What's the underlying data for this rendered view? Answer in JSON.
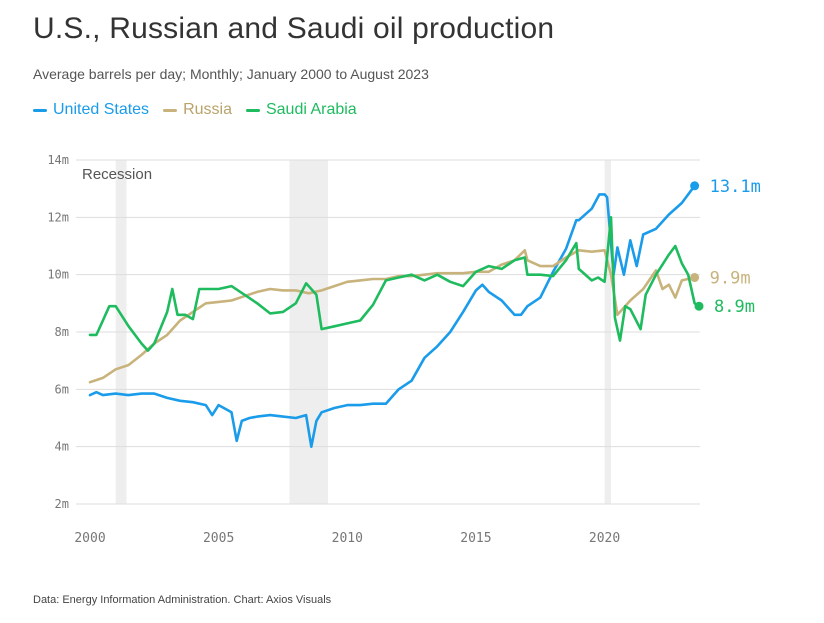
{
  "header": {
    "title": "U.S., Russian and Saudi oil production",
    "subtitle": "Average barrels per day; Monthly; January 2000 to August 2023"
  },
  "footer": {
    "source": "Data: Energy Information Administration. Chart: Axios Visuals"
  },
  "chart_data": {
    "type": "line",
    "title": "U.S., Russian and Saudi oil production",
    "subtitle": "Average barrels per day; Monthly; January 2000 to August 2023",
    "xlabel": "",
    "ylabel": "",
    "xlim": [
      2000,
      2023.67
    ],
    "ylim": [
      2,
      14
    ],
    "x_ticks": [
      2000,
      2005,
      2010,
      2015,
      2020
    ],
    "x_tick_labels": [
      "2000",
      "2005",
      "2010",
      "2015",
      "2020"
    ],
    "y_ticks": [
      2,
      4,
      6,
      8,
      10,
      12,
      14
    ],
    "y_tick_labels": [
      "2m",
      "4m",
      "6m",
      "8m",
      "10m",
      "12m",
      "14m"
    ],
    "grid": "horizontal",
    "legend": "top-left",
    "recession_label": "Recession",
    "recessions": [
      [
        2001.0,
        2001.42
      ],
      [
        2007.75,
        2009.25
      ],
      [
        2020.0,
        2020.25
      ]
    ],
    "series": [
      {
        "name": "United States",
        "color": "#1a9cea",
        "end_label": "13.1m",
        "points": [
          [
            2000.0,
            5.8
          ],
          [
            2000.25,
            5.9
          ],
          [
            2000.5,
            5.8
          ],
          [
            2001.0,
            5.85
          ],
          [
            2001.5,
            5.8
          ],
          [
            2002.0,
            5.85
          ],
          [
            2002.5,
            5.85
          ],
          [
            2003.0,
            5.7
          ],
          [
            2003.5,
            5.6
          ],
          [
            2004.0,
            5.55
          ],
          [
            2004.5,
            5.45
          ],
          [
            2004.75,
            5.1
          ],
          [
            2005.0,
            5.45
          ],
          [
            2005.5,
            5.2
          ],
          [
            2005.7,
            4.2
          ],
          [
            2005.9,
            4.9
          ],
          [
            2006.2,
            5.0
          ],
          [
            2006.5,
            5.05
          ],
          [
            2007.0,
            5.1
          ],
          [
            2007.5,
            5.05
          ],
          [
            2008.0,
            5.0
          ],
          [
            2008.4,
            5.1
          ],
          [
            2008.6,
            4.0
          ],
          [
            2008.8,
            4.9
          ],
          [
            2009.0,
            5.2
          ],
          [
            2009.5,
            5.35
          ],
          [
            2010.0,
            5.45
          ],
          [
            2010.5,
            5.45
          ],
          [
            2011.0,
            5.5
          ],
          [
            2011.5,
            5.5
          ],
          [
            2012.0,
            6.0
          ],
          [
            2012.5,
            6.3
          ],
          [
            2013.0,
            7.1
          ],
          [
            2013.5,
            7.5
          ],
          [
            2014.0,
            8.0
          ],
          [
            2014.5,
            8.7
          ],
          [
            2015.0,
            9.45
          ],
          [
            2015.25,
            9.65
          ],
          [
            2015.5,
            9.4
          ],
          [
            2016.0,
            9.1
          ],
          [
            2016.5,
            8.6
          ],
          [
            2016.75,
            8.6
          ],
          [
            2017.0,
            8.9
          ],
          [
            2017.5,
            9.2
          ],
          [
            2018.0,
            10.1
          ],
          [
            2018.5,
            10.9
          ],
          [
            2018.9,
            11.9
          ],
          [
            2019.0,
            11.9
          ],
          [
            2019.5,
            12.3
          ],
          [
            2019.8,
            12.8
          ],
          [
            2020.0,
            12.8
          ],
          [
            2020.1,
            12.7
          ],
          [
            2020.25,
            11.1
          ],
          [
            2020.35,
            10.0
          ],
          [
            2020.5,
            10.95
          ],
          [
            2020.75,
            10.0
          ],
          [
            2021.0,
            11.2
          ],
          [
            2021.25,
            10.3
          ],
          [
            2021.5,
            11.4
          ],
          [
            2022.0,
            11.6
          ],
          [
            2022.5,
            12.1
          ],
          [
            2023.0,
            12.5
          ],
          [
            2023.5,
            13.1
          ]
        ]
      },
      {
        "name": "Russia",
        "color": "#c8b37c",
        "end_label": "9.9m",
        "points": [
          [
            2000.0,
            6.25
          ],
          [
            2000.5,
            6.4
          ],
          [
            2001.0,
            6.7
          ],
          [
            2001.5,
            6.85
          ],
          [
            2002.0,
            7.2
          ],
          [
            2002.5,
            7.6
          ],
          [
            2003.0,
            7.9
          ],
          [
            2003.5,
            8.4
          ],
          [
            2004.0,
            8.7
          ],
          [
            2004.5,
            9.0
          ],
          [
            2005.0,
            9.05
          ],
          [
            2005.5,
            9.1
          ],
          [
            2006.0,
            9.25
          ],
          [
            2006.5,
            9.4
          ],
          [
            2007.0,
            9.5
          ],
          [
            2007.5,
            9.45
          ],
          [
            2008.0,
            9.45
          ],
          [
            2008.5,
            9.35
          ],
          [
            2009.0,
            9.45
          ],
          [
            2009.5,
            9.6
          ],
          [
            2010.0,
            9.75
          ],
          [
            2010.5,
            9.8
          ],
          [
            2011.0,
            9.85
          ],
          [
            2011.5,
            9.85
          ],
          [
            2012.0,
            9.95
          ],
          [
            2012.5,
            9.95
          ],
          [
            2013.0,
            10.0
          ],
          [
            2013.5,
            10.05
          ],
          [
            2014.0,
            10.05
          ],
          [
            2014.5,
            10.05
          ],
          [
            2015.0,
            10.1
          ],
          [
            2015.5,
            10.1
          ],
          [
            2016.0,
            10.35
          ],
          [
            2016.5,
            10.5
          ],
          [
            2016.9,
            10.85
          ],
          [
            2017.0,
            10.5
          ],
          [
            2017.5,
            10.3
          ],
          [
            2018.0,
            10.3
          ],
          [
            2018.5,
            10.6
          ],
          [
            2019.0,
            10.85
          ],
          [
            2019.5,
            10.8
          ],
          [
            2020.0,
            10.85
          ],
          [
            2020.25,
            10.0
          ],
          [
            2020.5,
            8.6
          ],
          [
            2020.75,
            8.85
          ],
          [
            2021.0,
            9.1
          ],
          [
            2021.5,
            9.5
          ],
          [
            2022.0,
            10.15
          ],
          [
            2022.25,
            9.5
          ],
          [
            2022.5,
            9.65
          ],
          [
            2022.75,
            9.2
          ],
          [
            2023.0,
            9.8
          ],
          [
            2023.5,
            9.9
          ]
        ]
      },
      {
        "name": "Saudi Arabia",
        "color": "#1fbb5f",
        "end_label": "8.9m",
        "points": [
          [
            2000.0,
            7.9
          ],
          [
            2000.25,
            7.9
          ],
          [
            2000.5,
            8.4
          ],
          [
            2000.75,
            8.9
          ],
          [
            2001.0,
            8.9
          ],
          [
            2001.5,
            8.2
          ],
          [
            2002.0,
            7.6
          ],
          [
            2002.25,
            7.35
          ],
          [
            2002.5,
            7.6
          ],
          [
            2003.0,
            8.7
          ],
          [
            2003.2,
            9.5
          ],
          [
            2003.4,
            8.6
          ],
          [
            2003.7,
            8.6
          ],
          [
            2004.0,
            8.45
          ],
          [
            2004.25,
            9.5
          ],
          [
            2005.0,
            9.5
          ],
          [
            2005.5,
            9.6
          ],
          [
            2006.0,
            9.3
          ],
          [
            2006.5,
            9.0
          ],
          [
            2007.0,
            8.65
          ],
          [
            2007.5,
            8.7
          ],
          [
            2008.0,
            9.0
          ],
          [
            2008.4,
            9.7
          ],
          [
            2008.8,
            9.3
          ],
          [
            2009.0,
            8.1
          ],
          [
            2009.5,
            8.2
          ],
          [
            2010.0,
            8.3
          ],
          [
            2010.5,
            8.4
          ],
          [
            2011.0,
            8.95
          ],
          [
            2011.5,
            9.8
          ],
          [
            2012.0,
            9.9
          ],
          [
            2012.5,
            10.0
          ],
          [
            2013.0,
            9.8
          ],
          [
            2013.5,
            10.0
          ],
          [
            2014.0,
            9.75
          ],
          [
            2014.5,
            9.6
          ],
          [
            2015.0,
            10.1
          ],
          [
            2015.5,
            10.3
          ],
          [
            2016.0,
            10.2
          ],
          [
            2016.5,
            10.5
          ],
          [
            2016.9,
            10.6
          ],
          [
            2017.0,
            10.0
          ],
          [
            2017.5,
            10.0
          ],
          [
            2018.0,
            9.95
          ],
          [
            2018.5,
            10.5
          ],
          [
            2018.9,
            11.1
          ],
          [
            2019.0,
            10.2
          ],
          [
            2019.5,
            9.8
          ],
          [
            2019.75,
            9.9
          ],
          [
            2020.0,
            9.75
          ],
          [
            2020.25,
            12.0
          ],
          [
            2020.4,
            8.5
          ],
          [
            2020.6,
            7.7
          ],
          [
            2020.8,
            8.9
          ],
          [
            2021.0,
            8.8
          ],
          [
            2021.4,
            8.1
          ],
          [
            2021.6,
            9.3
          ],
          [
            2022.0,
            10.0
          ],
          [
            2022.5,
            10.7
          ],
          [
            2022.75,
            11.0
          ],
          [
            2023.0,
            10.4
          ],
          [
            2023.25,
            10.0
          ],
          [
            2023.5,
            9.0
          ],
          [
            2023.67,
            8.9
          ]
        ]
      }
    ]
  }
}
